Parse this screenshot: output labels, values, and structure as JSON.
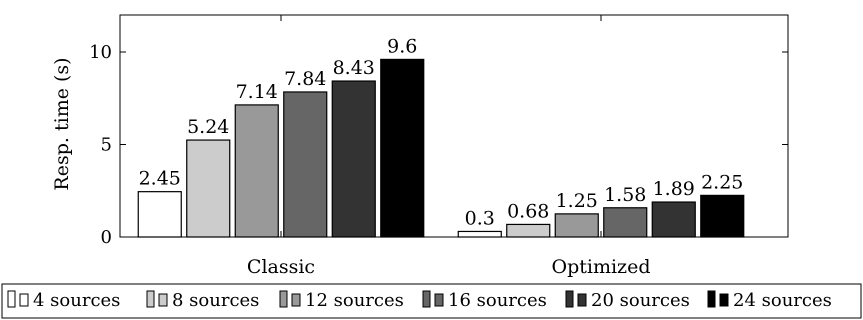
{
  "chart_data": {
    "type": "bar",
    "title": "",
    "xlabel": "",
    "ylabel": "Resp. time (s)",
    "ylim": [
      0,
      12
    ],
    "yticks": [
      0,
      5,
      10
    ],
    "categories": [
      "Classic",
      "Optimized"
    ],
    "series": [
      {
        "name": "4 sources",
        "values": [
          2.45,
          0.3
        ],
        "labels": [
          "2.45",
          "0.3"
        ],
        "color": "#ffffff"
      },
      {
        "name": "8 sources",
        "values": [
          5.24,
          0.68
        ],
        "labels": [
          "5.24",
          "0.68"
        ],
        "color": "#cccccc"
      },
      {
        "name": "12 sources",
        "values": [
          7.14,
          1.25
        ],
        "labels": [
          "7.14",
          "1.25"
        ],
        "color": "#999999"
      },
      {
        "name": "16 sources",
        "values": [
          7.84,
          1.58
        ],
        "labels": [
          "7.84",
          "1.58"
        ],
        "color": "#666666"
      },
      {
        "name": "20 sources",
        "values": [
          8.43,
          1.89
        ],
        "labels": [
          "8.43",
          "1.89"
        ],
        "color": "#333333"
      },
      {
        "name": "24 sources",
        "values": [
          9.6,
          2.25
        ],
        "labels": [
          "9.6",
          "2.25"
        ],
        "color": "#000000"
      }
    ],
    "grid": false,
    "legend_position": "bottom"
  }
}
